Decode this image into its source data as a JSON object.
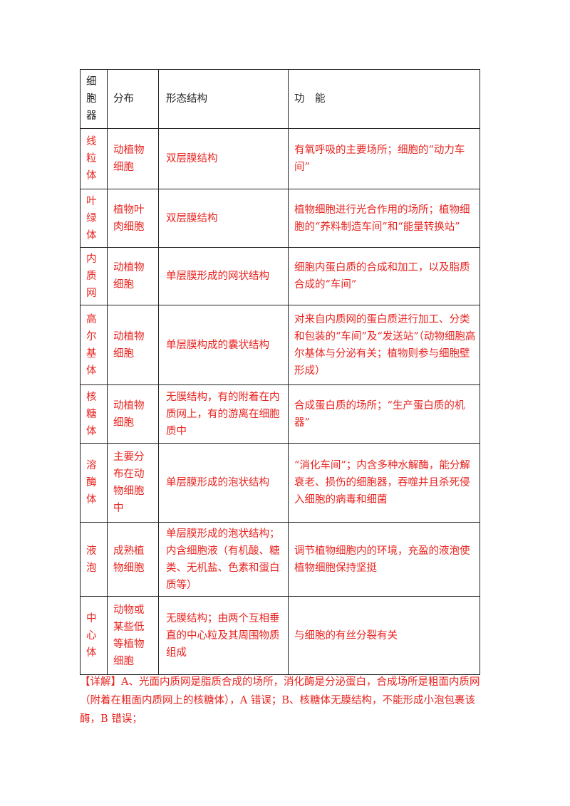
{
  "table": {
    "header": [
      "细胞器",
      "分布",
      "形态结构",
      "功　能"
    ],
    "rows": [
      [
        "线粒体",
        "动植物细胞",
        "双层膜结构",
        "有氧呼吸的主要场所；细胞的“动力车间”"
      ],
      [
        "叶绿体",
        "植物叶肉细胞",
        "双层膜结构",
        "植物细胞进行光合作用的场所；植物细胞的“养料制造车间”和“能量转换站”"
      ],
      [
        "内质网",
        "动植物细胞",
        "单层膜形成的网状结构",
        "细胞内蛋白质的合成和加工，以及脂质合成的“车间”"
      ],
      [
        "高尔基体",
        "动植物细胞",
        "单层膜构成的囊状结构",
        "对来自内质网的蛋白质进行加工、分类和包装的“车间”及“发送站”（动物细胞高尔基体与分泌有关；植物则参与细胞壁形成）"
      ],
      [
        "核糖体",
        "动植物细胞",
        "无膜结构，有的附着在内质网上，有的游离在细胞质中",
        "合成蛋白质的场所；“生产蛋白质的机器”"
      ],
      [
        "溶酶体",
        "主要分布在动物细胞中",
        "单层膜形成的泡状结构",
        "“消化车间”；内含多种水解酶，能分解衰老、损伤的细胞器，吞噬并且杀死侵入细胞的病毒和细菌"
      ],
      [
        "液泡",
        "成熟植物细胞",
        "单层膜形成的泡状结构；内含细胞液（有机酸、糖类、无机盐、色素和蛋白质等）",
        "调节植物细胞内的环境，充盈的液泡使植物细胞保持坚挺"
      ],
      [
        "中心体",
        "动物或某些低等植物细胞",
        "无膜结构；由两个互相垂直的中心粒及其周围物质组成",
        "与细胞的有丝分裂有关"
      ]
    ]
  },
  "note": {
    "label": "【详解】",
    "text": "A、光面内质网是脂质合成的场所，消化酶是分泌蛋白，合成场所是粗面内质网（附着在粗面内质网上的核糖体），A 错误；B、核糖体无膜结构，不能形成小泡包裹该酶，B 错误；"
  }
}
